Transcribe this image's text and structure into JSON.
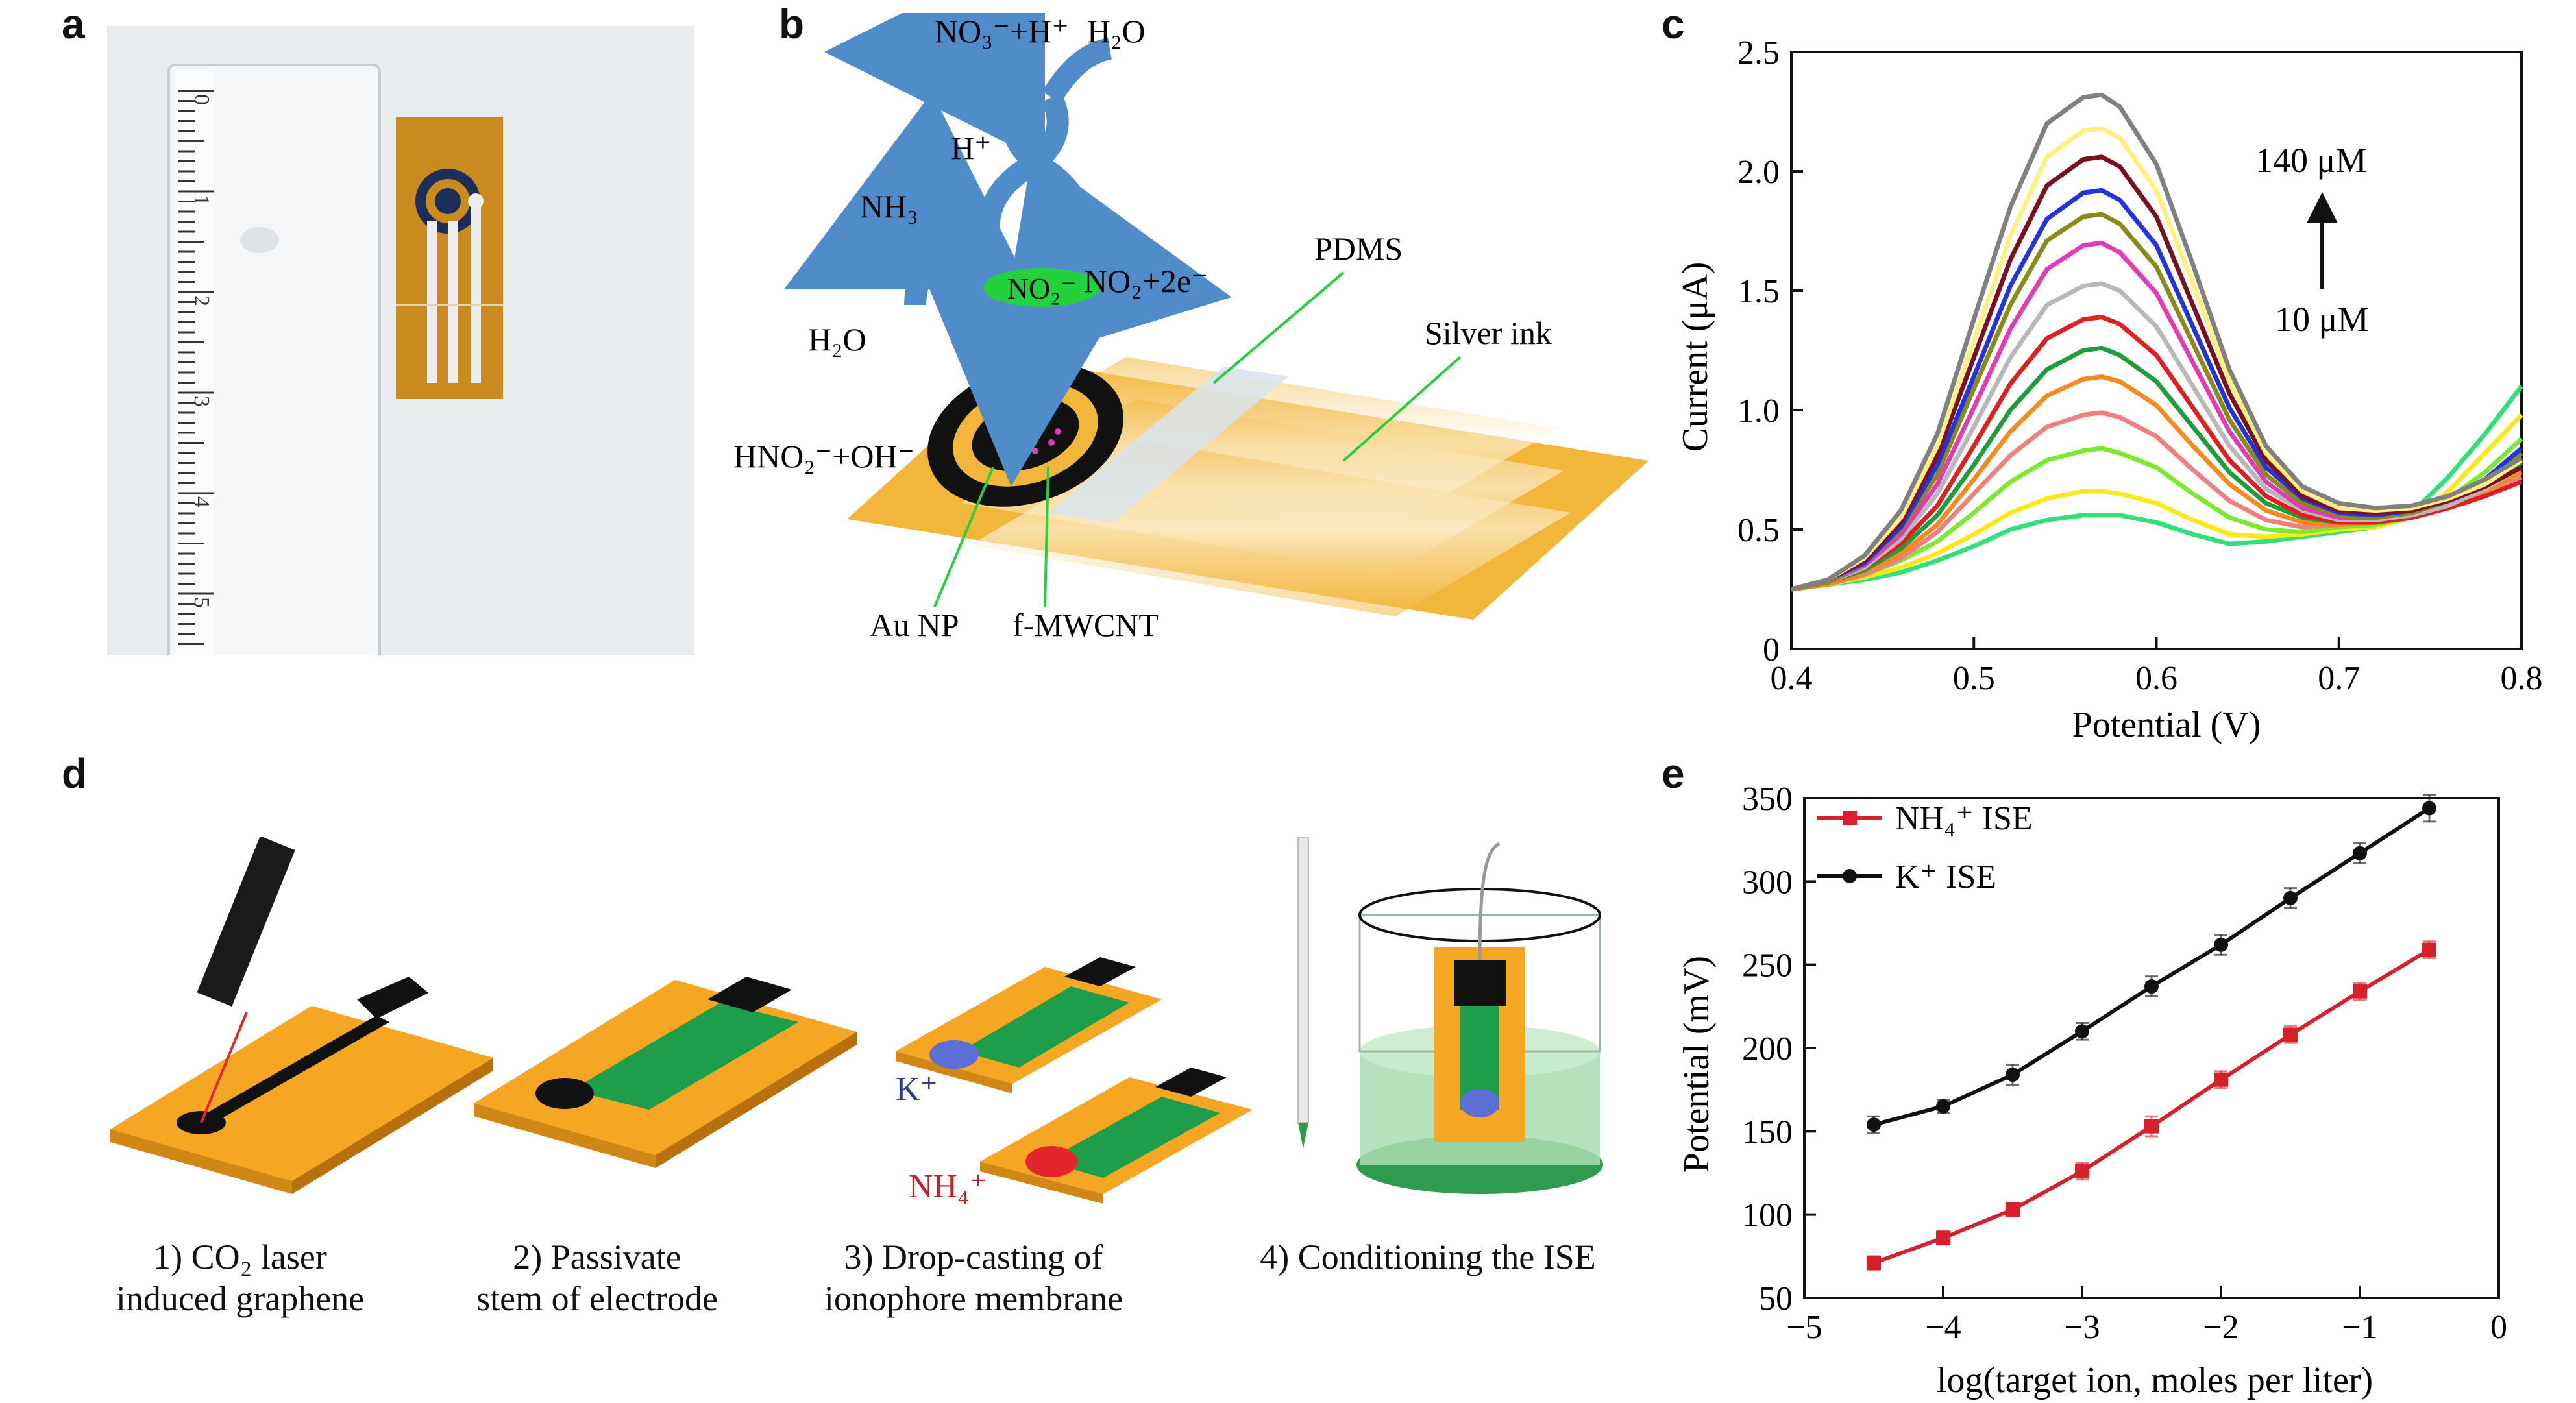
{
  "panel_labels": {
    "a": "a",
    "b": "b",
    "c": "c",
    "d": "d",
    "e": "e"
  },
  "panel_b": {
    "labels": {
      "no3_h": "NO₃⁻+H⁺",
      "h2o_top": "H₂O",
      "h_plus": "H⁺",
      "nh3": "NH₃",
      "no2_ion": "NO₂⁻",
      "no2_2e": "NO₂+2e⁻",
      "h2o_left": "H₂O",
      "hno2_oh": "HNO₂⁻+OH⁻",
      "pdms": "PDMS",
      "silver_ink": "Silver ink",
      "au_np": "Au NP",
      "f_mwcnt": "f-MWCNT"
    },
    "colors": {
      "substrate": "#F2B63A",
      "arrow": "#4F8CC9",
      "no2_oval": "#22D13B"
    }
  },
  "panel_d": {
    "captions": [
      {
        "line1": "1) CO₂ laser",
        "line2": "induced graphene"
      },
      {
        "line1": "2) Passivate",
        "line2": "stem of electrode"
      },
      {
        "line1": "3) Drop-casting of",
        "line2": "ionophore membrane"
      },
      {
        "line1": "4) Conditioning the ISE",
        "line2": ""
      }
    ],
    "k_label": "K⁺",
    "nh4_label": "NH₄⁺",
    "colors": {
      "substrate": "#F5A623",
      "graphene": "#111111",
      "passivation": "#1E9E4A",
      "k_membrane": "#5B6FD6",
      "nh4_membrane": "#E3262B"
    }
  },
  "chart_data": [
    {
      "id": "c",
      "type": "line",
      "title": "",
      "xlabel": "Potential (V)",
      "ylabel": "Current (μA)",
      "xlim": [
        0.4,
        0.8
      ],
      "ylim": [
        0,
        2.5
      ],
      "xticks": [
        "0.4",
        "0.5",
        "0.6",
        "0.7",
        "0.8"
      ],
      "yticks": [
        "0",
        "0.5",
        "1.0",
        "1.5",
        "2.0",
        "2.5"
      ],
      "grid": false,
      "annotations": {
        "top": "140 μM",
        "bottom": "10 μM"
      },
      "x": [
        0.4,
        0.42,
        0.44,
        0.46,
        0.48,
        0.5,
        0.52,
        0.54,
        0.56,
        0.57,
        0.58,
        0.6,
        0.62,
        0.64,
        0.66,
        0.68,
        0.7,
        0.72,
        0.74,
        0.76,
        0.78,
        0.8
      ],
      "series": [
        {
          "color": "#31E07A",
          "values": [
            0.25,
            0.27,
            0.29,
            0.32,
            0.37,
            0.43,
            0.5,
            0.54,
            0.56,
            0.56,
            0.56,
            0.53,
            0.48,
            0.44,
            0.45,
            0.47,
            0.49,
            0.51,
            0.57,
            0.72,
            0.9,
            1.1
          ]
        },
        {
          "color": "#FFE81A",
          "values": [
            0.25,
            0.27,
            0.3,
            0.34,
            0.4,
            0.48,
            0.57,
            0.63,
            0.66,
            0.66,
            0.65,
            0.61,
            0.54,
            0.48,
            0.47,
            0.48,
            0.5,
            0.51,
            0.55,
            0.66,
            0.82,
            0.98
          ]
        },
        {
          "color": "#7CE830",
          "values": [
            0.25,
            0.27,
            0.31,
            0.37,
            0.45,
            0.57,
            0.7,
            0.79,
            0.83,
            0.84,
            0.82,
            0.76,
            0.65,
            0.55,
            0.5,
            0.49,
            0.51,
            0.52,
            0.55,
            0.63,
            0.74,
            0.88
          ]
        },
        {
          "color": "#F08080",
          "values": [
            0.25,
            0.27,
            0.31,
            0.38,
            0.49,
            0.65,
            0.81,
            0.93,
            0.98,
            0.99,
            0.97,
            0.89,
            0.75,
            0.62,
            0.54,
            0.51,
            0.52,
            0.53,
            0.55,
            0.59,
            0.64,
            0.72
          ]
        },
        {
          "color": "#F58A1F",
          "values": [
            0.25,
            0.27,
            0.32,
            0.4,
            0.52,
            0.71,
            0.91,
            1.06,
            1.13,
            1.14,
            1.12,
            1.02,
            0.85,
            0.69,
            0.58,
            0.53,
            0.52,
            0.53,
            0.56,
            0.6,
            0.66,
            0.74
          ]
        },
        {
          "color": "#1E9E3A",
          "values": [
            0.25,
            0.28,
            0.33,
            0.42,
            0.56,
            0.77,
            1.0,
            1.17,
            1.25,
            1.26,
            1.23,
            1.12,
            0.93,
            0.74,
            0.61,
            0.55,
            0.53,
            0.53,
            0.56,
            0.61,
            0.68,
            0.78
          ]
        },
        {
          "color": "#E02020",
          "values": [
            0.25,
            0.28,
            0.34,
            0.44,
            0.6,
            0.85,
            1.11,
            1.3,
            1.38,
            1.39,
            1.36,
            1.23,
            1.01,
            0.79,
            0.64,
            0.56,
            0.53,
            0.53,
            0.55,
            0.59,
            0.64,
            0.7
          ]
        },
        {
          "color": "#B8B8B8",
          "values": [
            0.25,
            0.28,
            0.34,
            0.46,
            0.65,
            0.93,
            1.22,
            1.44,
            1.52,
            1.53,
            1.5,
            1.35,
            1.1,
            0.85,
            0.67,
            0.58,
            0.54,
            0.54,
            0.56,
            0.6,
            0.67,
            0.76
          ]
        },
        {
          "color": "#E23BB6",
          "values": [
            0.25,
            0.28,
            0.35,
            0.48,
            0.69,
            1.01,
            1.34,
            1.59,
            1.69,
            1.7,
            1.66,
            1.49,
            1.2,
            0.91,
            0.7,
            0.59,
            0.55,
            0.55,
            0.57,
            0.62,
            0.7,
            0.8
          ]
        },
        {
          "color": "#8A8A1A",
          "values": [
            0.25,
            0.28,
            0.36,
            0.5,
            0.73,
            1.09,
            1.44,
            1.71,
            1.81,
            1.82,
            1.78,
            1.6,
            1.28,
            0.96,
            0.73,
            0.61,
            0.56,
            0.55,
            0.57,
            0.62,
            0.7,
            0.82
          ]
        },
        {
          "color": "#2233E0",
          "values": [
            0.25,
            0.29,
            0.36,
            0.51,
            0.77,
            1.14,
            1.52,
            1.8,
            1.91,
            1.92,
            1.88,
            1.69,
            1.35,
            1.01,
            0.76,
            0.63,
            0.57,
            0.56,
            0.58,
            0.63,
            0.71,
            0.84
          ]
        },
        {
          "color": "#7A1020",
          "values": [
            0.25,
            0.29,
            0.37,
            0.53,
            0.81,
            1.22,
            1.63,
            1.94,
            2.05,
            2.06,
            2.02,
            1.81,
            1.44,
            1.07,
            0.79,
            0.64,
            0.58,
            0.57,
            0.58,
            0.62,
            0.68,
            0.76
          ]
        },
        {
          "color": "#FFF080",
          "values": [
            0.25,
            0.29,
            0.38,
            0.55,
            0.85,
            1.29,
            1.73,
            2.06,
            2.17,
            2.18,
            2.14,
            1.92,
            1.53,
            1.12,
            0.82,
            0.66,
            0.59,
            0.58,
            0.59,
            0.63,
            0.69,
            0.79
          ]
        },
        {
          "color": "#808080",
          "values": [
            0.25,
            0.29,
            0.39,
            0.58,
            0.9,
            1.38,
            1.85,
            2.2,
            2.31,
            2.32,
            2.27,
            2.03,
            1.61,
            1.17,
            0.85,
            0.68,
            0.61,
            0.59,
            0.6,
            0.64,
            0.71,
            0.8
          ]
        }
      ]
    },
    {
      "id": "e",
      "type": "line",
      "title": "",
      "xlabel": "log(target ion, moles per liter)",
      "ylabel": "Potential (mV)",
      "xlim": [
        -5,
        0
      ],
      "ylim": [
        50,
        350
      ],
      "xticks": [
        "−5",
        "−4",
        "−3",
        "−2",
        "−1",
        "0"
      ],
      "yticks": [
        "50",
        "100",
        "150",
        "200",
        "250",
        "300",
        "350"
      ],
      "grid": false,
      "legend": "top-left",
      "x": [
        -4.5,
        -4.0,
        -3.5,
        -3.0,
        -2.5,
        -2.0,
        -1.5,
        -1.0,
        -0.5
      ],
      "series": [
        {
          "name": "NH₄⁺ ISE",
          "color": "#D6202A",
          "values": [
            71,
            86,
            103,
            126,
            153,
            181,
            208,
            234,
            259
          ],
          "errors": [
            4,
            4,
            4,
            5,
            6,
            5,
            5,
            5,
            5
          ]
        },
        {
          "name": "K⁺ ISE",
          "color": "#111111",
          "values": [
            154,
            165,
            184,
            210,
            237,
            262,
            290,
            317,
            344
          ],
          "errors": [
            5,
            4,
            6,
            5,
            6,
            6,
            6,
            6,
            8
          ]
        }
      ]
    }
  ]
}
